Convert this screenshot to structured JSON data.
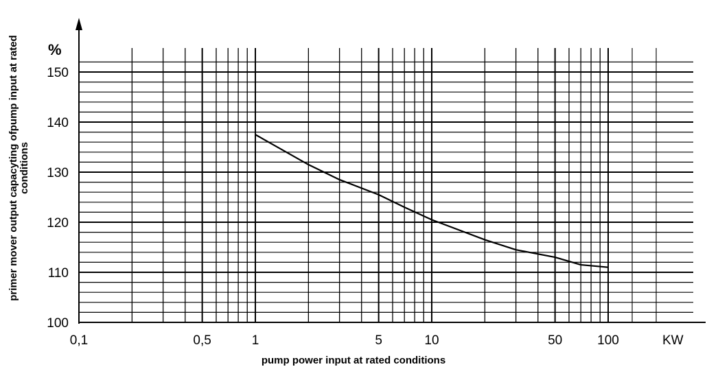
{
  "chart_data": {
    "type": "line",
    "title": "",
    "xlabel": "pump power input at rated conditions",
    "ylabel": "primer mover output capacyting ofpump input at rated conditions",
    "ylabel_lines": [
      "primer mover output capacyting ofpump input at rated",
      "conditions"
    ],
    "x_scale": "log",
    "xlim": [
      0.1,
      100
    ],
    "ylim": [
      100,
      152
    ],
    "x_ticks": [
      0.1,
      0.5,
      1,
      5,
      10,
      50,
      100
    ],
    "x_tick_labels": [
      "0,1",
      "0,5",
      "1",
      "5",
      "10",
      "50",
      "100"
    ],
    "x_unit": "KW",
    "y_ticks": [
      100,
      110,
      120,
      130,
      140,
      150
    ],
    "y_tick_labels": [
      "100",
      "110",
      "120",
      "130",
      "140",
      "150"
    ],
    "y_unit": "%",
    "grid": true,
    "series": [
      {
        "x": [
          1,
          2,
          3,
          5,
          7,
          10,
          20,
          30,
          50,
          70,
          100
        ],
        "y": [
          137.5,
          131.5,
          128.5,
          125.5,
          123,
          120.5,
          116.5,
          114.5,
          113,
          111.5,
          111
        ]
      }
    ]
  }
}
